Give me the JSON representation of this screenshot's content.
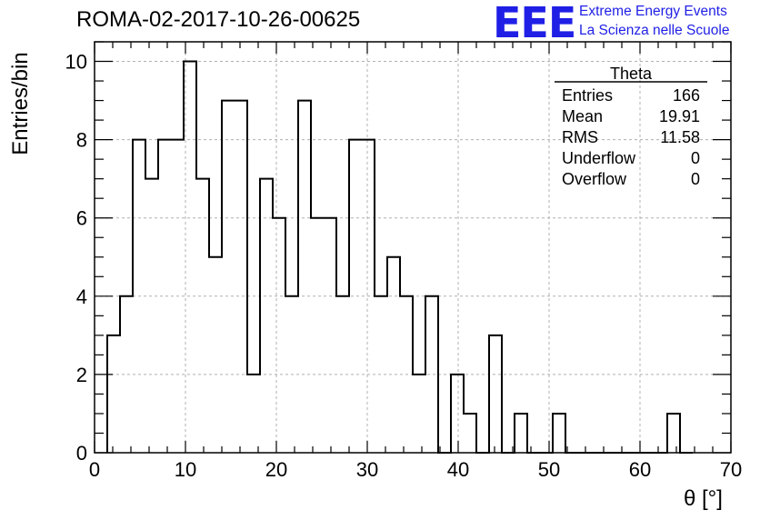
{
  "header": {
    "title": "ROMA-02-2017-10-26-00625",
    "logo_mark": "EEE",
    "logo_line1": "Extreme Energy Events",
    "logo_line2": "La Scienza nelle Scuole"
  },
  "stats_box": {
    "title": "Theta",
    "rows": [
      {
        "label": "Entries",
        "value": "166"
      },
      {
        "label": "Mean",
        "value": "19.91"
      },
      {
        "label": "RMS",
        "value": "11.58"
      },
      {
        "label": "Underflow",
        "value": "0"
      },
      {
        "label": "Overflow",
        "value": "0"
      }
    ]
  },
  "chart_data": {
    "type": "bar",
    "subtype": "histogram-step",
    "xlabel": "θ [°]",
    "ylabel": "Entries/bin",
    "xlim": [
      0,
      70
    ],
    "ylim": [
      0,
      10.5
    ],
    "bin_width": 1.4,
    "bin_start": 1.4,
    "x_ticks": [
      0,
      10,
      20,
      30,
      40,
      50,
      60,
      70
    ],
    "y_ticks": [
      0,
      2,
      4,
      6,
      8,
      10
    ],
    "grid": true,
    "values": [
      3,
      4,
      8,
      7,
      8,
      8,
      10,
      7,
      5,
      9,
      9,
      2,
      7,
      6,
      4,
      9,
      6,
      6,
      4,
      8,
      8,
      4,
      5,
      4,
      2,
      4,
      0,
      2,
      1,
      0,
      3,
      0,
      1,
      0,
      0,
      1,
      0,
      0,
      0,
      0,
      0,
      0,
      0,
      0,
      1,
      0
    ],
    "colors": {
      "line": "#000000",
      "grid": "#b0b0b0",
      "logo": "#1f1fe6"
    }
  }
}
